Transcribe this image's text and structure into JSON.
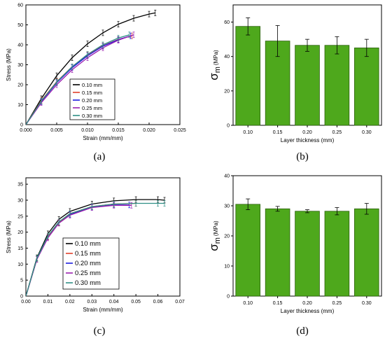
{
  "chart_data": [
    {
      "type": "line",
      "panel_label": "(a)",
      "xlabel": "Strain (mm/mm)",
      "ylabel": "Stress (MPa)",
      "xlim": [
        0,
        0.025
      ],
      "ylim": [
        0,
        60
      ],
      "xticks": [
        "0.000",
        "0.005",
        "0.010",
        "0.015",
        "0.020",
        "0.025"
      ],
      "yticks": [
        "0",
        "10",
        "20",
        "30",
        "40",
        "50",
        "60"
      ],
      "legend_position": "inside-lower-right",
      "series": [
        {
          "name": "0.10 mm",
          "color": "#000000",
          "x": [
            0,
            0.0025,
            0.005,
            0.0075,
            0.01,
            0.0125,
            0.015,
            0.0175,
            0.02,
            0.021
          ],
          "y": [
            0,
            13,
            24.5,
            33.5,
            40.5,
            46,
            50.3,
            53.3,
            55.4,
            56
          ]
        },
        {
          "name": "0.15 mm",
          "color": "#e0402c",
          "x": [
            0,
            0.0025,
            0.005,
            0.0075,
            0.01,
            0.0125,
            0.015,
            0.0172
          ],
          "y": [
            0,
            12,
            21.5,
            29,
            35,
            39.5,
            42.7,
            44.5
          ]
        },
        {
          "name": "0.20 mm",
          "color": "#1c1ce0",
          "x": [
            0,
            0.0025,
            0.005,
            0.0075,
            0.01,
            0.0125,
            0.015,
            0.017
          ],
          "y": [
            0,
            11.5,
            21,
            28.5,
            34.5,
            39.3,
            42.6,
            44.5
          ]
        },
        {
          "name": "0.25 mm",
          "color": "#9a1fb0",
          "x": [
            0,
            0.0025,
            0.005,
            0.0075,
            0.01,
            0.0125,
            0.015,
            0.0175
          ],
          "y": [
            0,
            11,
            20,
            27.5,
            33.5,
            38.5,
            42.3,
            45
          ]
        },
        {
          "name": "0.30 mm",
          "color": "#2f8f86",
          "x": [
            0,
            0.0025,
            0.005,
            0.0075,
            0.01,
            0.0125,
            0.015,
            0.0168
          ],
          "y": [
            0,
            11.8,
            21.3,
            29,
            35.2,
            40,
            43.4,
            45
          ]
        }
      ]
    },
    {
      "type": "bar",
      "panel_label": "(b)",
      "xlabel": "Layer thickness (mm)",
      "ylabel_main": "σ",
      "ylabel_sub": "m",
      "ylabel_unit": "(MPa)",
      "categories": [
        "0.10",
        "0.15",
        "0.20",
        "0.25",
        "0.30"
      ],
      "values": [
        57.5,
        49,
        46.5,
        46.5,
        45
      ],
      "errors": [
        5,
        9,
        3.5,
        5,
        5
      ],
      "ylim": [
        0,
        70
      ],
      "yticks": [
        "0",
        "20",
        "40",
        "60"
      ],
      "bar_color": "#4ea81c"
    },
    {
      "type": "line",
      "panel_label": "(c)",
      "xlabel": "Strain (mm/mm)",
      "ylabel": "Stress (MPa)",
      "xlim": [
        0,
        0.07
      ],
      "ylim": [
        0,
        37
      ],
      "xticks": [
        "0.00",
        "0.01",
        "0.02",
        "0.03",
        "0.04",
        "0.05",
        "0.06",
        "0.07"
      ],
      "yticks": [
        "0",
        "5",
        "10",
        "15",
        "20",
        "25",
        "30",
        "35"
      ],
      "legend_position": "lower-right",
      "series": [
        {
          "name": "0.10 mm",
          "color": "#000000",
          "x": [
            0,
            0.005,
            0.01,
            0.015,
            0.02,
            0.03,
            0.04,
            0.05,
            0.06,
            0.063
          ],
          "y": [
            0,
            12,
            19.5,
            24,
            26.5,
            28.8,
            29.8,
            30.2,
            30.2,
            30
          ]
        },
        {
          "name": "0.20 mm",
          "color": "#1c1ce0",
          "x": [
            0,
            0.005,
            0.01,
            0.015,
            0.02,
            0.03,
            0.04,
            0.047
          ],
          "y": [
            0,
            11.5,
            18.5,
            23,
            25.5,
            27.8,
            28.5,
            28.5
          ]
        },
        {
          "name": "0.15 mm",
          "color": "#e0402c",
          "x": [
            0,
            0.005,
            0.01,
            0.015,
            0.02,
            0.03,
            0.04,
            0.05
          ],
          "y": [
            0,
            11.5,
            18.5,
            23,
            25.8,
            28,
            28.8,
            29
          ]
        },
        {
          "name": "0.25 mm",
          "color": "#9a1fb0",
          "x": [
            0,
            0.005,
            0.01,
            0.015,
            0.02,
            0.03,
            0.04,
            0.048
          ],
          "y": [
            0,
            11.5,
            18.2,
            22.8,
            25.3,
            27.7,
            28.4,
            28.4
          ]
        },
        {
          "name": "0.30 mm",
          "color": "#2f8f86",
          "x": [
            0,
            0.005,
            0.01,
            0.015,
            0.02,
            0.03,
            0.04,
            0.05,
            0.06,
            0.063
          ],
          "y": [
            0,
            11.8,
            18.8,
            23.2,
            25.8,
            28,
            28.8,
            29,
            29,
            29
          ]
        }
      ],
      "legend_order": [
        "0.10 mm",
        "0.15 mm",
        "0.20 mm",
        "0.25 mm",
        "0.30 mm"
      ]
    },
    {
      "type": "bar",
      "panel_label": "(d)",
      "xlabel": "Layer thickness (mm)",
      "ylabel_main": "σ",
      "ylabel_sub": "m",
      "ylabel_unit": "(MPa)",
      "categories": [
        "0.10",
        "0.15",
        "0.20",
        "0.25",
        "0.30"
      ],
      "values": [
        30.5,
        29,
        28.2,
        28.2,
        29
      ],
      "errors": [
        1.8,
        0.8,
        0.5,
        1.2,
        1.8
      ],
      "ylim": [
        0,
        40
      ],
      "yticks": [
        "0",
        "10",
        "20",
        "30",
        "40"
      ],
      "bar_color": "#4ea81c"
    }
  ]
}
